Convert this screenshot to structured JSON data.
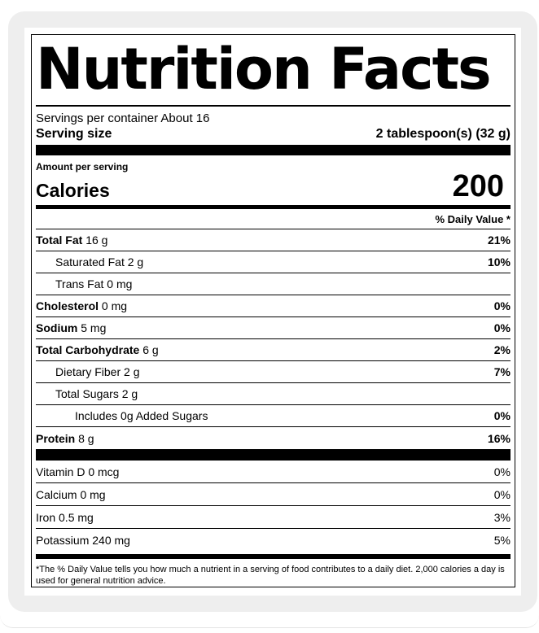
{
  "title": "Nutrition Facts",
  "servings_per_container": "Servings per container About 16",
  "serving_size_label": "Serving size",
  "serving_size_value": "2 tablespoon(s) (32 g)",
  "amount_per_serving": "Amount per serving",
  "calories_label": "Calories",
  "calories_value": "200",
  "daily_value_header": "% Daily Value *",
  "nutrients": [
    {
      "name": "Total Fat",
      "amount": "16 g",
      "dv": "21%"
    },
    {
      "name": "Saturated Fat 2 g",
      "amount": "",
      "dv": "10%"
    },
    {
      "name": "Trans Fat 0 mg",
      "amount": "",
      "dv": ""
    },
    {
      "name": "Cholesterol",
      "amount": "0 mg",
      "dv": "0%"
    },
    {
      "name": "Sodium",
      "amount": "5 mg",
      "dv": "0%"
    },
    {
      "name": "Total Carbohydrate",
      "amount": "6 g",
      "dv": "2%"
    },
    {
      "name": "Dietary Fiber 2 g",
      "amount": "",
      "dv": "7%"
    },
    {
      "name": "Total Sugars 2 g",
      "amount": "",
      "dv": ""
    },
    {
      "name": "Includes 0g Added Sugars",
      "amount": "",
      "dv": "0%"
    },
    {
      "name": "Protein",
      "amount": "8 g",
      "dv": "16%"
    }
  ],
  "vitamins": [
    {
      "name": "Vitamin D 0 mcg",
      "dv": "0%"
    },
    {
      "name": "Calcium 0 mg",
      "dv": "0%"
    },
    {
      "name": "Iron 0.5 mg",
      "dv": "3%"
    },
    {
      "name": "Potassium 240 mg",
      "dv": "5%"
    }
  ],
  "footnote": "*The % Daily Value tells you how much a nutrient in a serving of food contributes to a daily diet. 2,000 calories a day is used for general nutrition advice."
}
